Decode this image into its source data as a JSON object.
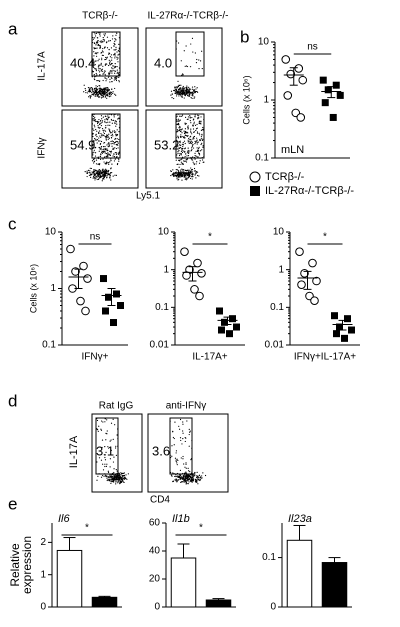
{
  "panel_labels": [
    "a",
    "b",
    "c",
    "d",
    "e"
  ],
  "flow_a": {
    "columns": [
      "TCRβ-/-",
      "IL-27Rα-/-TCRβ-/-"
    ],
    "rows": [
      "IL-17A",
      "IFNγ"
    ],
    "percents": [
      [
        "40.4",
        "4.0"
      ],
      [
        "54.9",
        "53.2"
      ]
    ],
    "xlabel": "Ly5.1"
  },
  "flow_d": {
    "columns": [
      "Rat IgG",
      "anti-IFNγ"
    ],
    "ylabel": "IL-17A",
    "percents": [
      "3.1",
      "3.6"
    ],
    "xlabel": "CD4"
  },
  "chart_data": [
    {
      "type": "dot",
      "ylabel": "Cells (x 10⁶)",
      "log": true,
      "ylim": [
        0.1,
        10
      ],
      "yticks": [
        10,
        1,
        0.1
      ],
      "annotation": "ns",
      "note": "mLN",
      "series": [
        {
          "name": "TCRβ-/-",
          "color": "#000000",
          "marker": "circle",
          "values": [
            5,
            3.5,
            2.8,
            2.2,
            1.2,
            0.6,
            0.5
          ],
          "mean": 2.7,
          "error": 0.9
        },
        {
          "name": "IL-27Rα-/-TCRβ-/-",
          "color": "#000000",
          "marker": "square",
          "values": [
            2.2,
            1.8,
            1.5,
            1.2,
            0.9,
            0.5
          ],
          "mean": 1.4,
          "error": 0.3
        }
      ]
    },
    {
      "type": "dot",
      "ylabel": "Cells (x 10⁶)",
      "xlabel": "IFNγ+",
      "log": true,
      "ylim": [
        0.1,
        10
      ],
      "yticks": [
        10,
        1,
        0.1
      ],
      "annotation": "ns",
      "series": [
        {
          "color": "#000000",
          "marker": "circle",
          "values": [
            5,
            2.5,
            2,
            1.5,
            1,
            0.6,
            0.4
          ],
          "mean": 1.6,
          "error": 0.6
        },
        {
          "color": "#000000",
          "marker": "square",
          "values": [
            1.5,
            0.8,
            0.7,
            0.5,
            0.4,
            0.25
          ],
          "mean": 0.75,
          "error": 0.25
        }
      ]
    },
    {
      "type": "dot",
      "xlabel": "IL-17A+",
      "log": true,
      "ylim": [
        0.01,
        10
      ],
      "yticks": [
        10,
        1,
        0.1,
        0.01
      ],
      "annotation": "*",
      "series": [
        {
          "color": "#000000",
          "marker": "circle",
          "values": [
            3,
            1.5,
            1,
            0.8,
            0.7,
            0.3,
            0.2
          ],
          "mean": 0.85,
          "error": 0.35
        },
        {
          "color": "#000000",
          "marker": "square",
          "values": [
            0.08,
            0.05,
            0.04,
            0.03,
            0.025,
            0.02
          ],
          "mean": 0.045,
          "error": 0.01
        }
      ]
    },
    {
      "type": "dot",
      "xlabel": "IFNγ+IL-17A+",
      "log": true,
      "ylim": [
        0.01,
        10
      ],
      "yticks": [
        10,
        1,
        0.1,
        0.01
      ],
      "annotation": "*",
      "series": [
        {
          "color": "#000000",
          "marker": "circle",
          "values": [
            3,
            1.5,
            0.8,
            0.5,
            0.4,
            0.2,
            0.15
          ],
          "mean": 0.6,
          "error": 0.3
        },
        {
          "color": "#000000",
          "marker": "square",
          "values": [
            0.06,
            0.05,
            0.03,
            0.025,
            0.02,
            0.015
          ],
          "mean": 0.035,
          "error": 0.01
        }
      ]
    },
    {
      "type": "bar",
      "title": "Il6",
      "ylabel": [
        "Relative",
        "expression"
      ],
      "ylim": [
        0,
        2.6
      ],
      "yticks": [
        0,
        1,
        2
      ],
      "annotation": "*",
      "values": [
        1.75,
        0.3
      ],
      "errors": [
        0.4,
        0.03
      ],
      "colors": [
        "#ffffff",
        "#000000"
      ]
    },
    {
      "type": "bar",
      "title": "Il1b",
      "ylim": [
        0,
        60
      ],
      "yticks": [
        0,
        20,
        40,
        60
      ],
      "annotation": "*",
      "values": [
        35,
        5
      ],
      "errors": [
        10,
        1
      ],
      "colors": [
        "#ffffff",
        "#000000"
      ]
    },
    {
      "type": "bar",
      "title": "Il23a",
      "ylim": [
        0,
        0.17
      ],
      "yticks": [
        0,
        0.1
      ],
      "values": [
        0.135,
        0.09
      ],
      "errors": [
        0.03,
        0.01
      ],
      "colors": [
        "#ffffff",
        "#000000"
      ]
    }
  ]
}
